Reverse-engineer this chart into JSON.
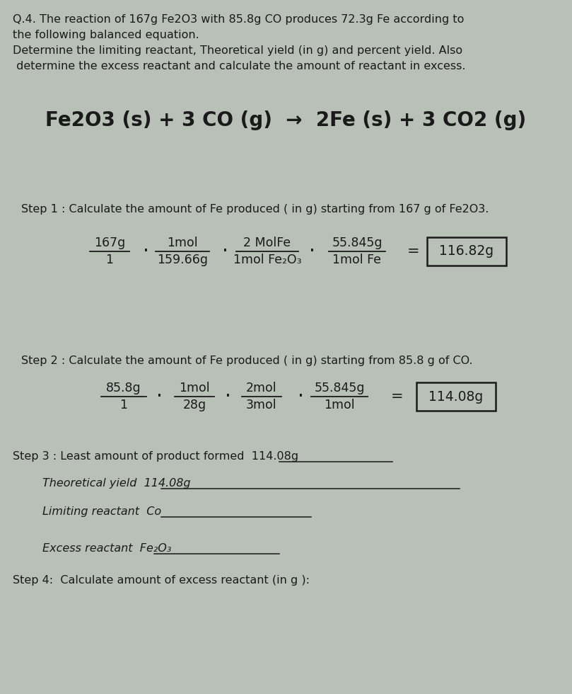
{
  "bg_color": "#b8c0b8",
  "text_color": "#1a1a1a",
  "title_text_line1": "Q.4. The reaction of 167g Fe2O3 with 85.8g CO produces 72.3g Fe according to",
  "title_text_line2": "the following balanced equation.",
  "title_text_line3": "Determine the limiting reactant, Theoretical yield (in g) and percent yield. Also",
  "title_text_line4": " determine the excess reactant and calculate the amount of reactant in excess.",
  "equation": "Fe2O3 (s) + 3 CO (g)  →  2Fe (s) + 3 CO2 (g)",
  "step1_label": "Step 1 : Calculate the amount of Fe produced ( in g) starting from 167 g of Fe2O3.",
  "step1_frac0_num": "167g",
  "step1_frac0_den": "1",
  "step1_frac1_num": "1mol",
  "step1_frac1_den": "159.66g",
  "step1_frac2_num": "2 MolFe",
  "step1_frac2_den": "1mol Fe₂O₃",
  "step1_frac3_num": "55.845g",
  "step1_frac3_den": "1mol Fe",
  "step1_result": "116.82g",
  "step2_label": "Step 2 : Calculate the amount of Fe produced ( in g) starting from 85.8 g of CO.",
  "step2_frac0_num": "85.8g",
  "step2_frac0_den": "1",
  "step2_frac1_num": "1mol",
  "step2_frac1_den": "28g",
  "step2_frac2_num": "2mol",
  "step2_frac2_den": "3mol",
  "step2_frac3_num": "55.845g",
  "step2_frac3_den": "1mol",
  "step2_result": "114.08g",
  "step3_label": "Step 3 : Least amount of product formed",
  "step3_value": "114.08g",
  "theo_yield_label": "Theoretical yield",
  "theo_yield_value": "114.08g",
  "lim_react_label": "Limiting reactant",
  "lim_react_value": "Co",
  "excess_react_label": "Excess reactant",
  "excess_react_value": "Fe₂O₃",
  "step4_label": "Step 4:  Calculate amount of excess reactant (in g ):"
}
